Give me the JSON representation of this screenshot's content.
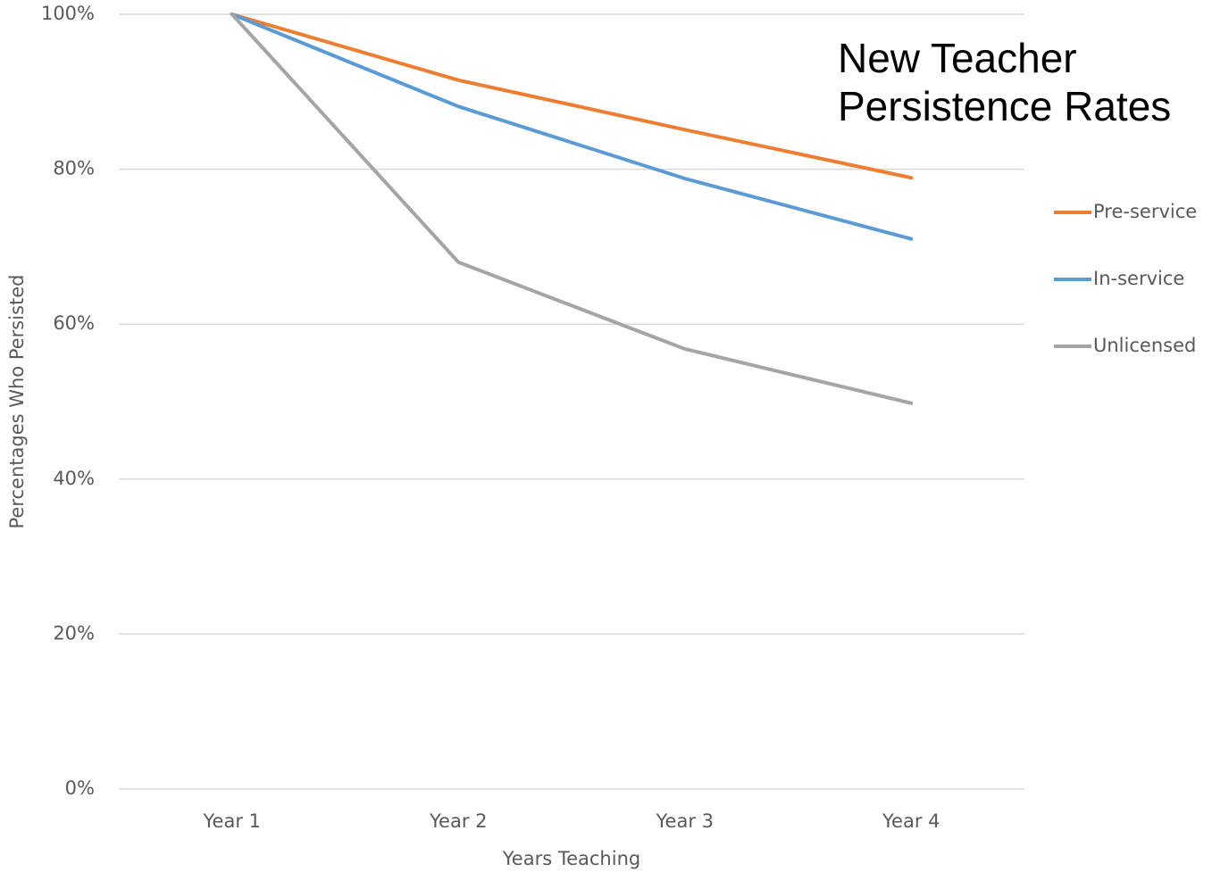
{
  "chart_data": {
    "type": "line",
    "title": "New Teacher Persistence Rates",
    "x_label": "Years Teaching",
    "y_label": "Percentages Who Persisted",
    "categories": [
      "Year 1",
      "Year 2",
      "Year 3",
      "Year 4"
    ],
    "series": [
      {
        "name": "Pre-service",
        "color": "#ed7d31",
        "values": [
          100,
          91.5,
          85.1,
          78.9
        ]
      },
      {
        "name": "In-service",
        "color": "#5b9bd5",
        "values": [
          100,
          88.1,
          78.8,
          71.0
        ]
      },
      {
        "name": "Unlicensed",
        "color": "#a5a5a5",
        "values": [
          100,
          68.0,
          56.8,
          49.8
        ]
      }
    ],
    "ylim": [
      0,
      100
    ],
    "yticks": [
      {
        "value": 0,
        "label": "0%"
      },
      {
        "value": 20,
        "label": "20%"
      },
      {
        "value": 40,
        "label": "40%"
      },
      {
        "value": 60,
        "label": "60%"
      },
      {
        "value": 80,
        "label": "80%"
      },
      {
        "value": 100,
        "label": "100%"
      }
    ],
    "grid": true,
    "legend": "right"
  }
}
